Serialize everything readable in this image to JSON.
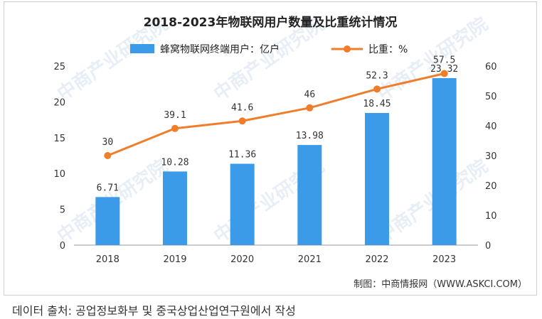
{
  "chart_data": {
    "type": "bar+line",
    "title": "2018-2023年物联网用户数量及比重统计情况",
    "categories": [
      "2018",
      "2019",
      "2020",
      "2021",
      "2022",
      "2023"
    ],
    "series": [
      {
        "name": "蜂窝物联网终端用户：亿户",
        "kind": "bar",
        "axis": "left",
        "values": [
          6.71,
          10.28,
          11.36,
          13.98,
          18.45,
          23.32
        ],
        "color": "#3b9be8",
        "labels": [
          "6.71",
          "10.28",
          "11.36",
          "13.98",
          "18.45",
          "23.32"
        ]
      },
      {
        "name": "比重：%",
        "kind": "line",
        "axis": "right",
        "values": [
          30,
          39.1,
          41.6,
          46,
          52.3,
          57.5
        ],
        "color": "#f07d2a",
        "labels": [
          "30",
          "39.1",
          "41.6",
          "46",
          "52.3",
          "57.5"
        ]
      }
    ],
    "left_axis": {
      "ylim": [
        0,
        25
      ],
      "ticks": [
        "0",
        "5",
        "10",
        "15",
        "20",
        "25"
      ]
    },
    "right_axis": {
      "ylim": [
        0,
        60
      ],
      "ticks": [
        "0",
        "10",
        "20",
        "30",
        "40",
        "50",
        "60"
      ]
    },
    "legend_placement": "top-center",
    "grid": false
  },
  "credit": "制图：中商情报网（WWW.ASKCI.COM）",
  "watermark": "中商产业研究院",
  "source_note": "데이터 출처: 공업정보화부 및 중국상업산업연구원에서 작성"
}
